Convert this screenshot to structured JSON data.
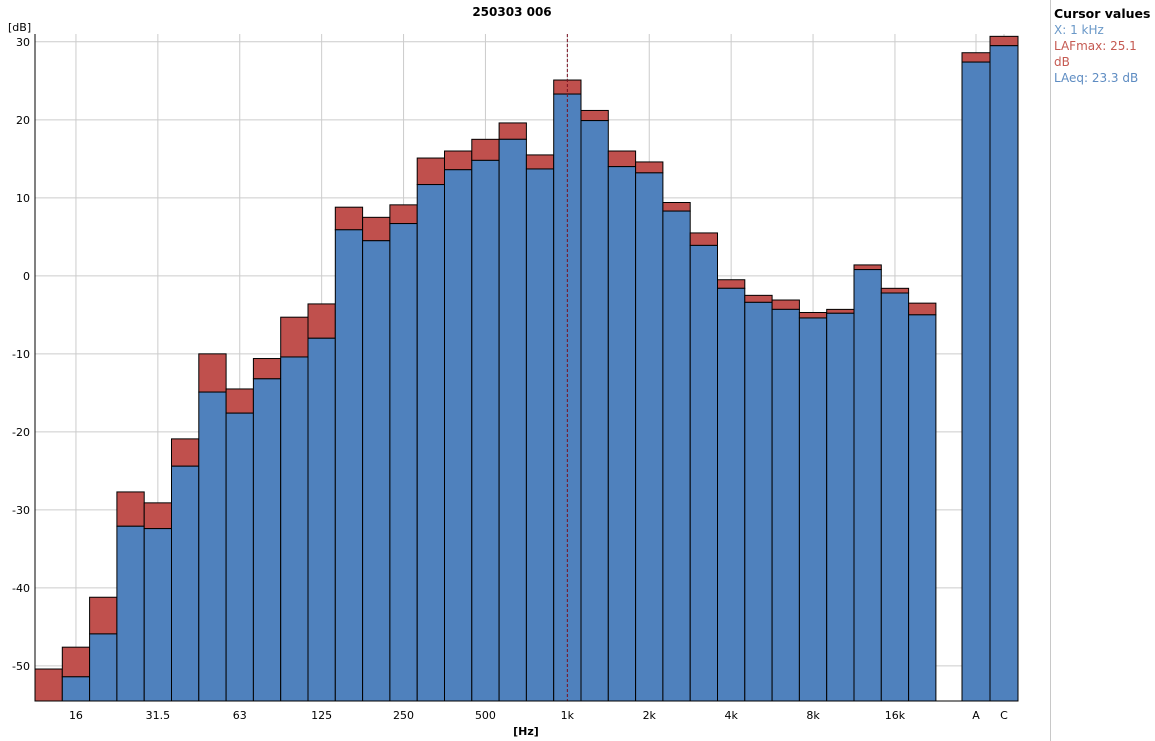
{
  "chart_data": {
    "type": "bar",
    "title": "250303 006",
    "ylabel": "[dB]",
    "xlabel": "[Hz]",
    "ylim": [
      -54.5,
      31
    ],
    "y_ticks": [
      "30",
      "20",
      "10",
      "0",
      "-10",
      "-20",
      "-30",
      "-40",
      "-50"
    ],
    "y_tick_values": [
      30,
      20,
      10,
      0,
      -10,
      -20,
      -30,
      -40,
      -50
    ],
    "x_tick_labels": [
      "16",
      "31.5",
      "63",
      "125",
      "250",
      "500",
      "1k",
      "2k",
      "4k",
      "8k",
      "16k"
    ],
    "categories": [
      "12.5",
      "16",
      "20",
      "25",
      "31.5",
      "40",
      "50",
      "63",
      "80",
      "100",
      "125",
      "160",
      "200",
      "250",
      "315",
      "400",
      "500",
      "630",
      "800",
      "1k",
      "1.25k",
      "1.6k",
      "2k",
      "2.5k",
      "3.15k",
      "4k",
      "5k",
      "6.3k",
      "8k",
      "10k",
      "12.5k",
      "16k",
      "20k"
    ],
    "series": [
      {
        "name": "LAFmax",
        "color": "#c0504d",
        "values": [
          -50.4,
          -47.6,
          -41.2,
          -27.7,
          -29.1,
          -20.9,
          -10.0,
          -14.5,
          -10.6,
          -5.3,
          -3.6,
          8.8,
          7.5,
          9.1,
          15.1,
          16.0,
          17.5,
          19.6,
          15.5,
          25.1,
          21.2,
          16.0,
          14.6,
          9.4,
          5.5,
          -0.5,
          -2.5,
          -3.1,
          -4.7,
          -4.3,
          1.4,
          -1.6,
          -3.5
        ]
      },
      {
        "name": "LAeq",
        "color": "#4f81bd",
        "values": [
          -54.5,
          -51.4,
          -45.9,
          -32.1,
          -32.4,
          -24.4,
          -14.9,
          -17.6,
          -13.2,
          -10.4,
          -8.0,
          5.9,
          4.5,
          6.7,
          11.7,
          13.6,
          14.8,
          17.5,
          13.7,
          23.3,
          19.9,
          14.0,
          13.2,
          8.3,
          3.9,
          -1.6,
          -3.4,
          -4.3,
          -5.4,
          -4.8,
          0.8,
          -2.2,
          -5.0
        ]
      }
    ],
    "overall_categories": [
      "A",
      "C"
    ],
    "overall": {
      "LAFmax": [
        28.6,
        30.7
      ],
      "LAeq": [
        27.4,
        29.5
      ]
    },
    "cursor_category": "1k",
    "grid": true
  },
  "cursor_panel": {
    "title": "Cursor values",
    "x_text": "X: 1 kHz",
    "lafmax_text": "LAFmax: 25.1 dB",
    "laeq_text": "LAeq: 23.3 dB"
  }
}
